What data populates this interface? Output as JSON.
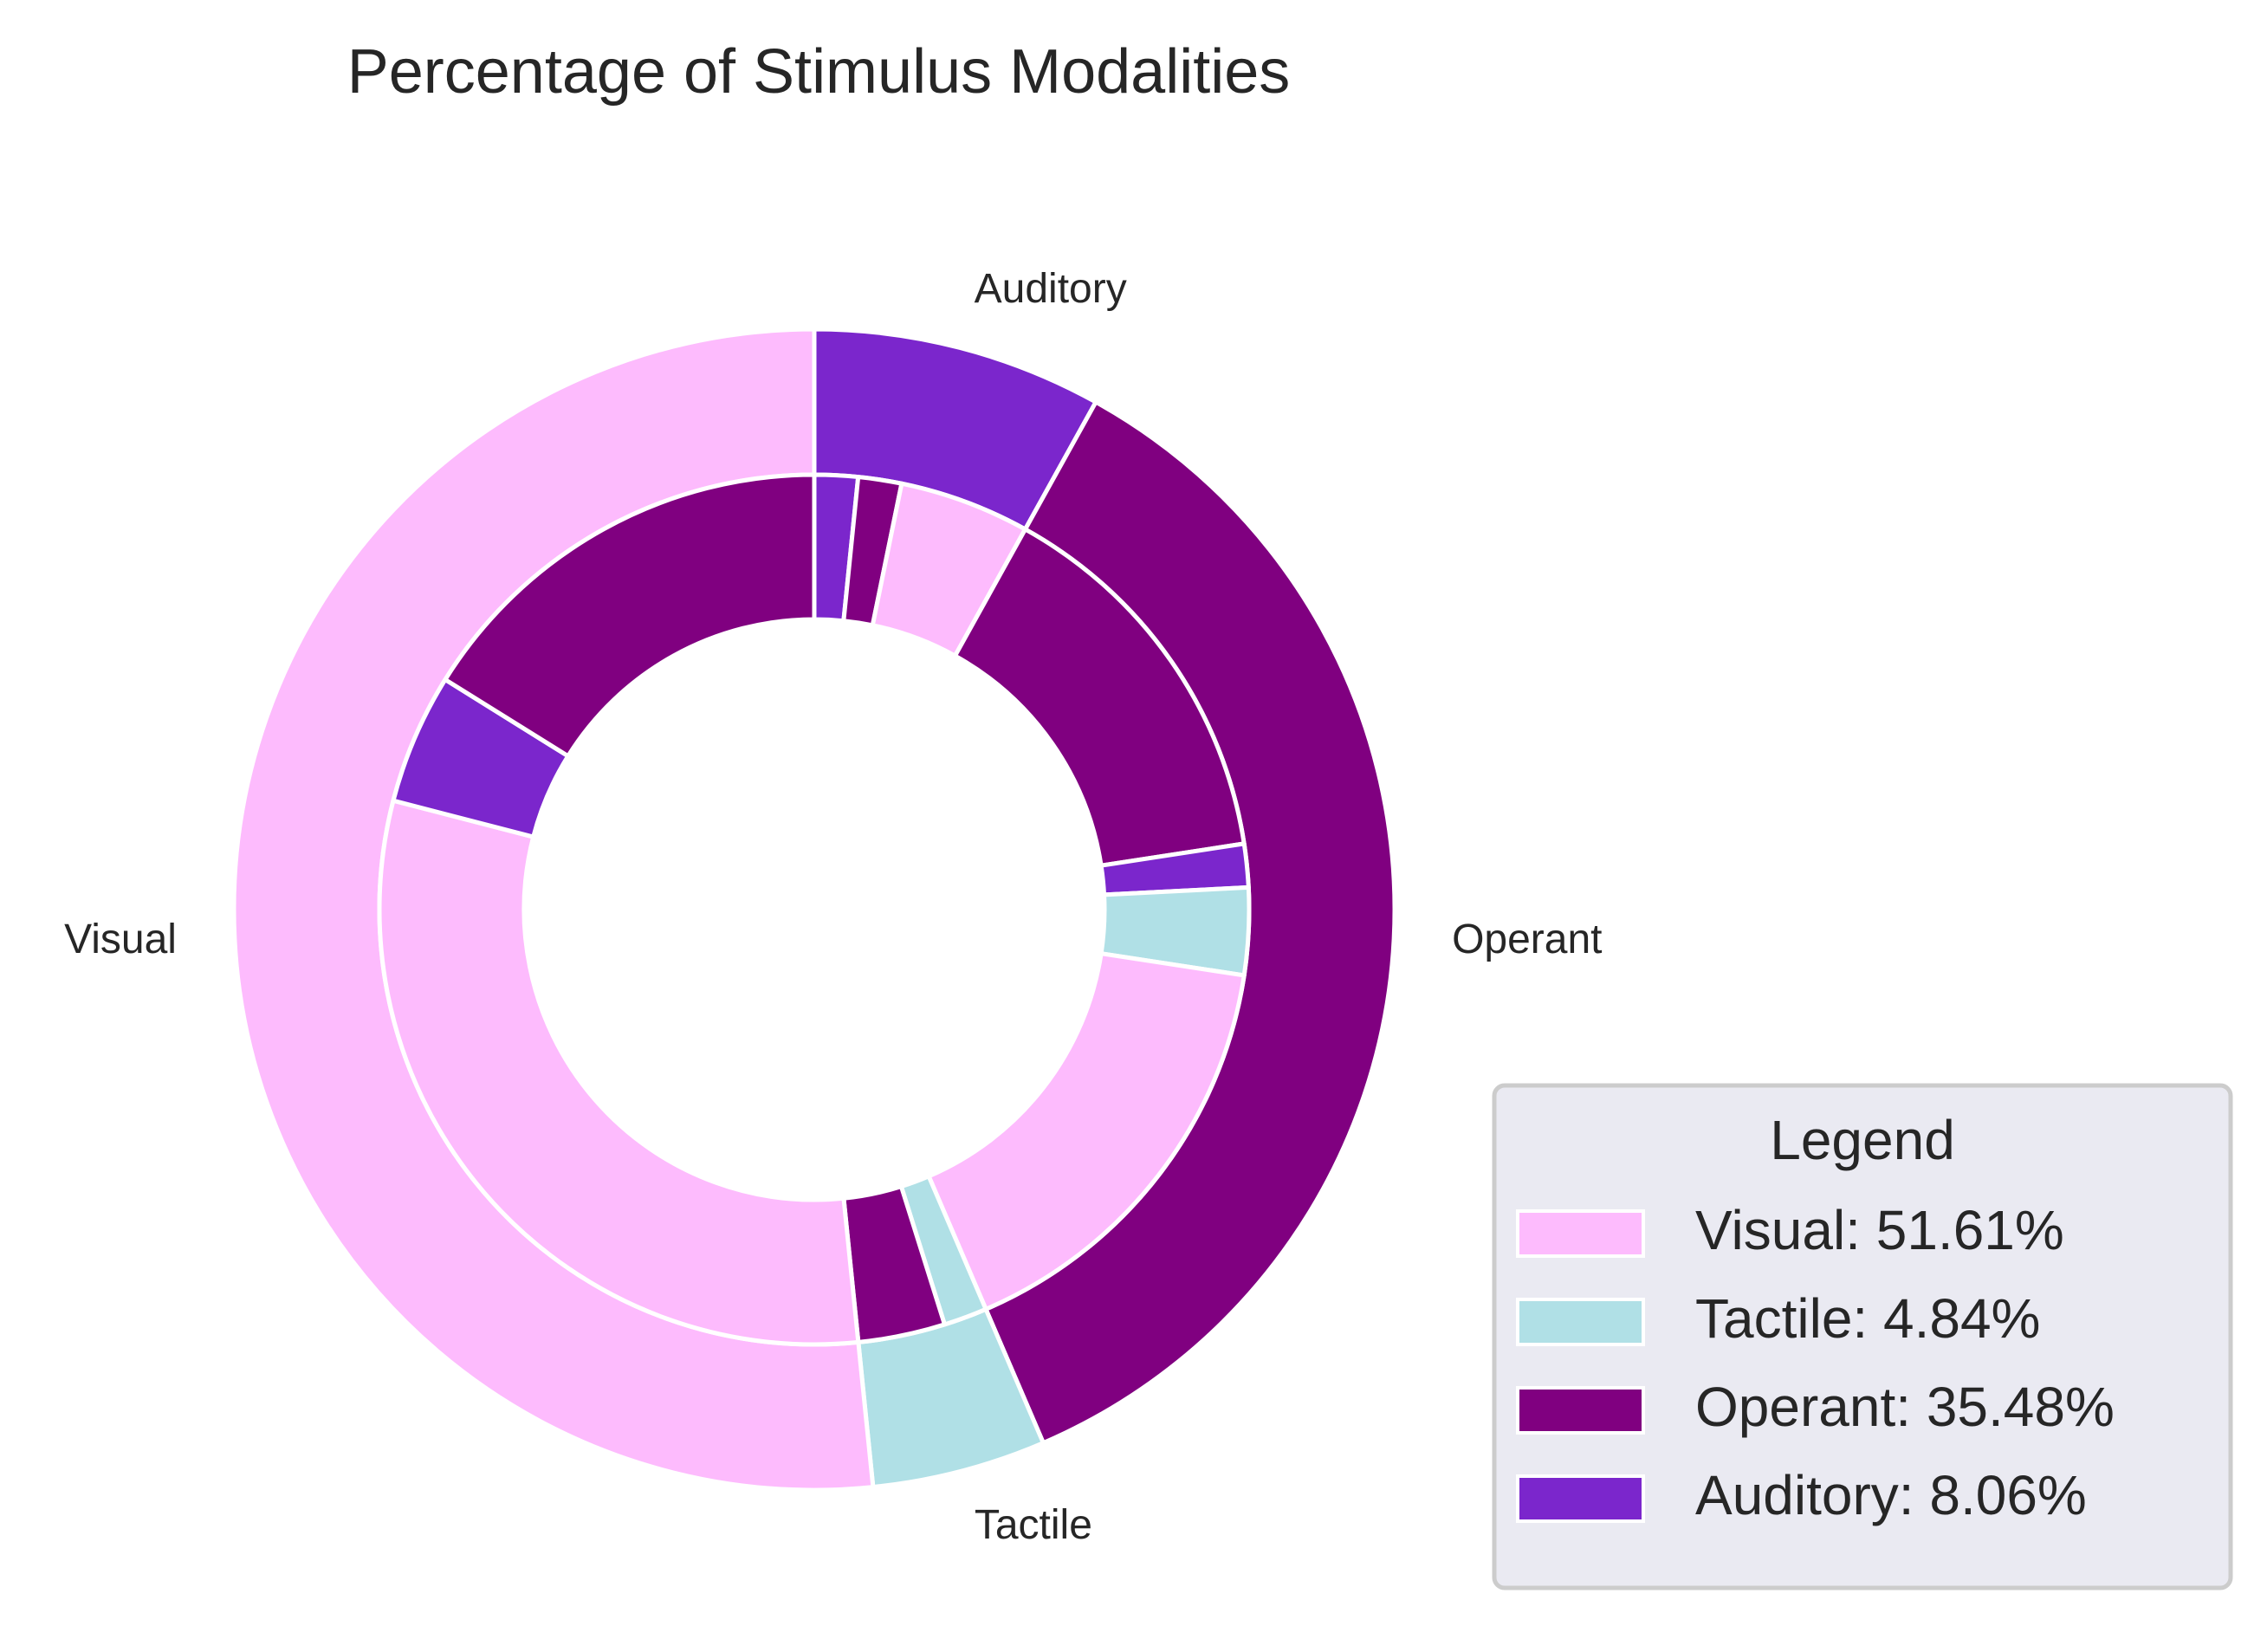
{
  "chart_data": {
    "type": "pie",
    "title": "Percentage of Stimulus Modalities",
    "colors": {
      "Visual": "#fdbbfd",
      "Tactile": "#b0e0e6",
      "Operant": "#800080",
      "Auditory": "#7b26cc"
    },
    "outer_ring": [
      {
        "label": "Auditory",
        "value": 8.06
      },
      {
        "label": "Operant",
        "value": 35.48
      },
      {
        "label": "Tactile",
        "value": 4.84
      },
      {
        "label": "Visual",
        "value": 51.61
      }
    ],
    "inner_ring": [
      {
        "group": "Auditory",
        "category": "Auditory",
        "value": 1.61
      },
      {
        "group": "Auditory",
        "category": "Operant",
        "value": 1.61
      },
      {
        "group": "Auditory",
        "category": "Visual",
        "value": 4.84
      },
      {
        "group": "Operant",
        "category": "Operant",
        "value": 14.52
      },
      {
        "group": "Operant",
        "category": "Auditory",
        "value": 1.61
      },
      {
        "group": "Operant",
        "category": "Tactile",
        "value": 3.23
      },
      {
        "group": "Operant",
        "category": "Visual",
        "value": 16.13
      },
      {
        "group": "Tactile",
        "category": "Tactile",
        "value": 1.61
      },
      {
        "group": "Tactile",
        "category": "Operant",
        "value": 3.23
      },
      {
        "group": "Visual",
        "category": "Visual",
        "value": 30.65
      },
      {
        "group": "Visual",
        "category": "Auditory",
        "value": 4.84
      },
      {
        "group": "Visual",
        "category": "Operant",
        "value": 16.13
      }
    ],
    "legend": {
      "title": "Legend",
      "placement": "lower-right",
      "entries": [
        {
          "category": "Visual",
          "text": "Visual: 51.61%"
        },
        {
          "category": "Tactile",
          "text": "Tactile: 4.84%"
        },
        {
          "category": "Operant",
          "text": "Operant: 35.48%"
        },
        {
          "category": "Auditory",
          "text": "Auditory: 8.06%"
        }
      ]
    }
  }
}
